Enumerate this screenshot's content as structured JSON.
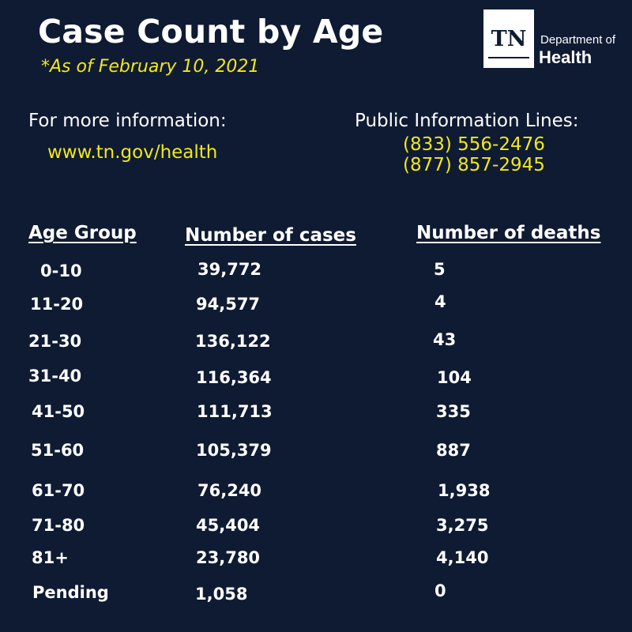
{
  "title": "Case Count by Age",
  "subtitle": "*As of February 10, 2021",
  "logo": {
    "mark": "TN",
    "line1": "Department of",
    "line2": "Health"
  },
  "info": {
    "label": "For more information:",
    "url": "www.tn.gov/health",
    "lines_label": "Public Information Lines:",
    "phones": [
      "(833) 556-2476",
      "(877) 857-2945"
    ]
  },
  "table": {
    "headers": [
      "Age Group",
      "Number of cases",
      "Number of deaths"
    ],
    "rows": [
      {
        "age": "0-10",
        "cases": "39,772",
        "deaths": "5"
      },
      {
        "age": "11-20",
        "cases": "94,577",
        "deaths": "4"
      },
      {
        "age": "21-30",
        "cases": "136,122",
        "deaths": "43"
      },
      {
        "age": "31-40",
        "cases": "116,364",
        "deaths": "104"
      },
      {
        "age": "41-50",
        "cases": "111,713",
        "deaths": "335"
      },
      {
        "age": "51-60",
        "cases": "105,379",
        "deaths": "887"
      },
      {
        "age": "61-70",
        "cases": "76,240",
        "deaths": "1,938"
      },
      {
        "age": "71-80",
        "cases": "45,404",
        "deaths": "3,275"
      },
      {
        "age": "81+",
        "cases": "23,780",
        "deaths": "4,140"
      },
      {
        "age": "Pending",
        "cases": "1,058",
        "deaths": "0"
      }
    ]
  },
  "colors": {
    "background": "#0f1b33",
    "accent": "#f2e81a",
    "text": "#ffffff"
  }
}
